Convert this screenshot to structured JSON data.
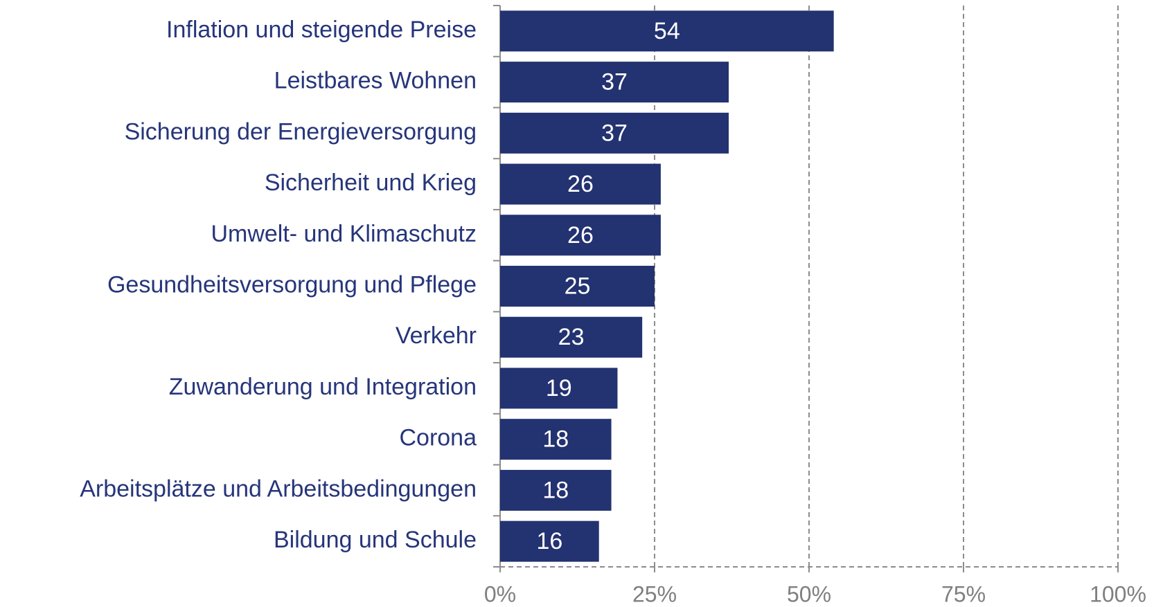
{
  "chart_data": {
    "type": "bar",
    "orientation": "horizontal",
    "categories": [
      "Inflation und steigende Preise",
      "Leistbares Wohnen",
      "Sicherung der Energieversorgung",
      "Sicherheit und Krieg",
      "Umwelt- und Klimaschutz",
      "Gesundheitsversorgung und Pflege",
      "Verkehr",
      "Zuwanderung und Integration",
      "Corona",
      "Arbeitsplätze und Arbeitsbedingungen",
      "Bildung und Schule"
    ],
    "values": [
      54,
      37,
      37,
      26,
      26,
      25,
      23,
      19,
      18,
      18,
      16
    ],
    "color": "#233270",
    "xlim": [
      0,
      100
    ],
    "xticks": [
      {
        "value": 0,
        "label": "0%"
      },
      {
        "value": 25,
        "label": "25%"
      },
      {
        "value": 50,
        "label": "50%"
      },
      {
        "value": 75,
        "label": "75%"
      },
      {
        "value": 100,
        "label": "100%"
      }
    ],
    "grid": true
  }
}
